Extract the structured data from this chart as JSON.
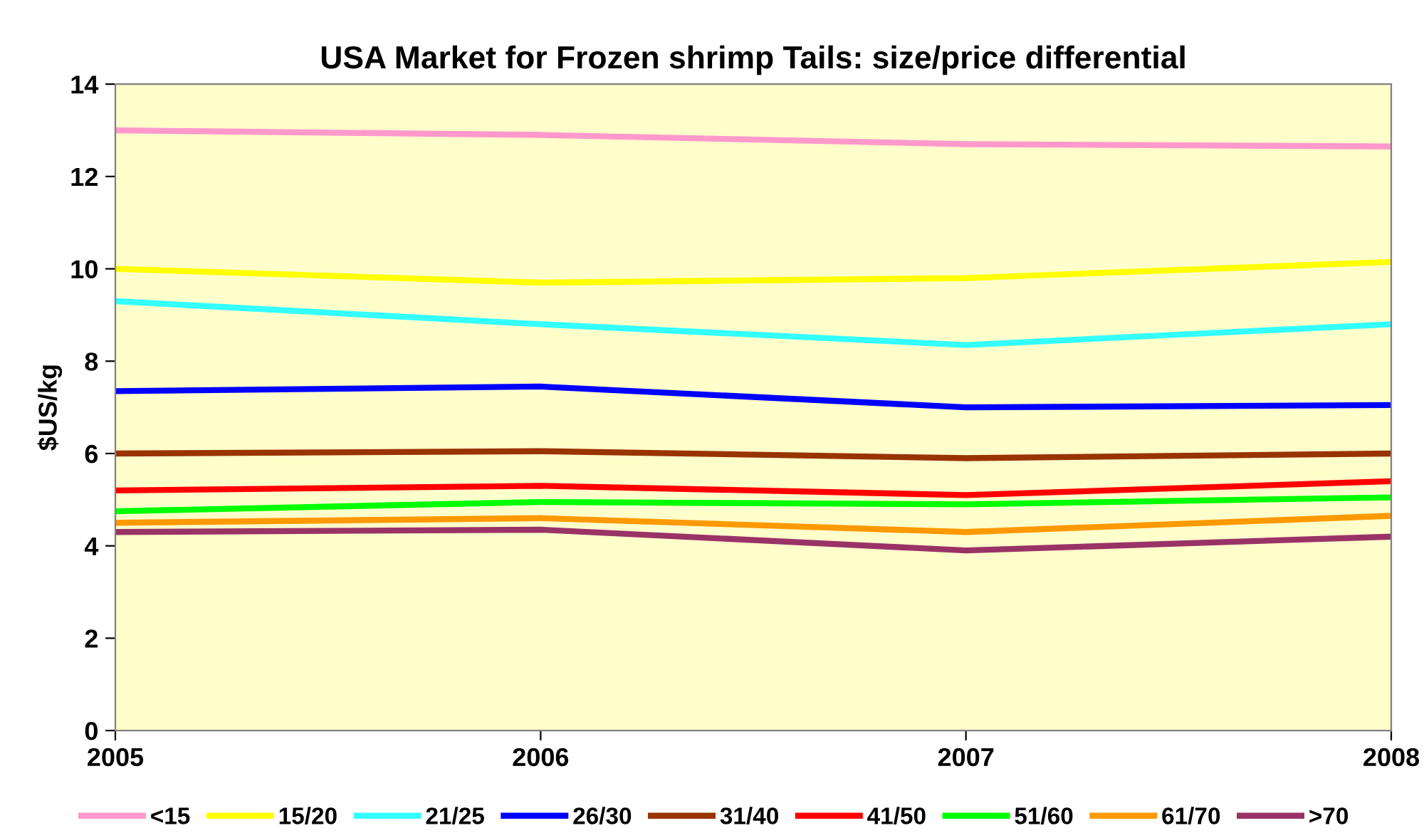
{
  "chart_data": {
    "type": "line",
    "title": "USA Market for Frozen shrimp Tails: size/price differential",
    "ylabel": "$US/kg",
    "x": [
      2005,
      2006,
      2007,
      2008
    ],
    "xlim": [
      2005,
      2008
    ],
    "xticks": [
      2005,
      2006,
      2007,
      2008
    ],
    "ylim": [
      0,
      14
    ],
    "yticks": [
      0,
      2,
      4,
      6,
      8,
      10,
      12,
      14
    ],
    "grid": false,
    "legend": "bottom",
    "marker": "none",
    "line_style": "solid",
    "series": [
      {
        "name": "<15",
        "color": "#ff99cc",
        "values": [
          13.0,
          12.9,
          12.7,
          12.65
        ]
      },
      {
        "name": "15/20",
        "color": "#ffff00",
        "values": [
          10.0,
          9.7,
          9.8,
          10.15
        ]
      },
      {
        "name": "21/25",
        "color": "#33ffff",
        "values": [
          9.3,
          8.8,
          8.35,
          8.8
        ]
      },
      {
        "name": "26/30",
        "color": "#0000ff",
        "values": [
          7.35,
          7.45,
          7.0,
          7.05
        ]
      },
      {
        "name": "31/40",
        "color": "#993300",
        "values": [
          6.0,
          6.05,
          5.9,
          6.0
        ]
      },
      {
        "name": "41/50",
        "color": "#ff0000",
        "values": [
          5.2,
          5.3,
          5.1,
          5.4
        ]
      },
      {
        "name": "51/60",
        "color": "#00ff00",
        "values": [
          4.75,
          4.95,
          4.9,
          5.05
        ]
      },
      {
        "name": "61/70",
        "color": "#ff9900",
        "values": [
          4.5,
          4.6,
          4.3,
          4.65
        ]
      },
      {
        "name": ">70",
        "color": "#993366",
        "values": [
          4.3,
          4.35,
          3.9,
          4.2
        ]
      }
    ]
  }
}
